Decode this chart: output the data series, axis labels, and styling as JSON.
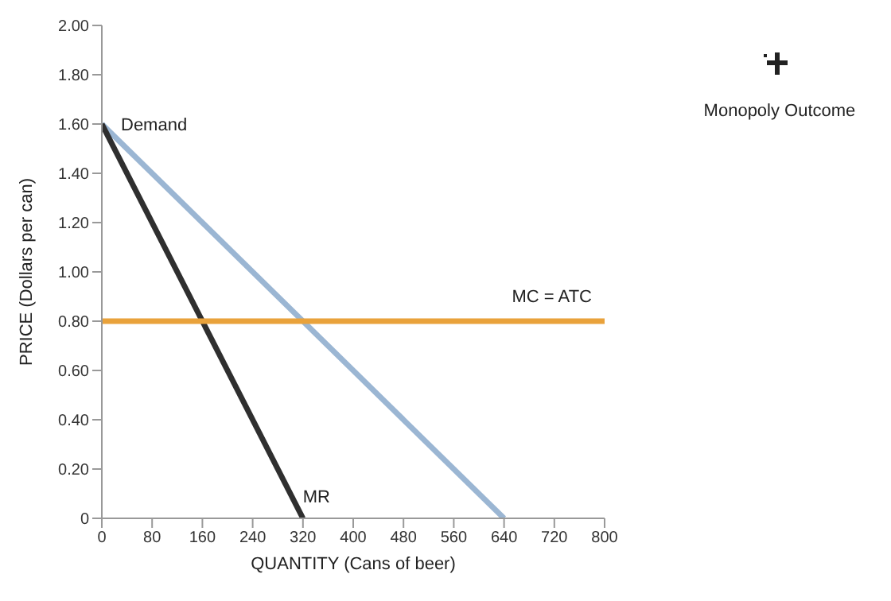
{
  "chart_data": {
    "type": "line",
    "xlabel": "QUANTITY (Cans of beer)",
    "ylabel": "PRICE (Dollars per can)",
    "annotations": [
      "Monopoly Outcome"
    ],
    "series": [
      {
        "name": "Demand",
        "color": "#9bb6d3",
        "x": [
          0,
          640
        ],
        "values": [
          1.6,
          0
        ]
      },
      {
        "name": "MR",
        "color": "#2f2f2f",
        "x": [
          0,
          320
        ],
        "values": [
          1.6,
          0
        ]
      },
      {
        "name": "MC = ATC",
        "color": "#e9a23b",
        "x": [
          0,
          800
        ],
        "values": [
          0.8,
          0.8
        ]
      }
    ],
    "xlim": [
      0,
      800
    ],
    "xticks": [
      0,
      80,
      160,
      240,
      320,
      400,
      480,
      560,
      640,
      720,
      800
    ],
    "ylim": [
      0,
      2
    ],
    "yticks": [
      0,
      {
        "value": 0.2,
        "label": "0.20"
      },
      {
        "value": 0.4,
        "label": "0.40"
      },
      {
        "value": 0.6,
        "label": "0.60"
      },
      {
        "value": 0.8,
        "label": "0.80"
      },
      {
        "value": 1,
        "label": "1.00"
      },
      {
        "value": 1.2,
        "label": "1.20"
      },
      {
        "value": 1.4,
        "label": "1.40"
      },
      {
        "value": 1.6,
        "label": "1.60"
      },
      {
        "value": 1.8,
        "label": "1.80"
      },
      {
        "value": 2,
        "label": "2.00"
      }
    ],
    "grid": false,
    "legend": false,
    "marker": "none",
    "line_style": "solid"
  }
}
